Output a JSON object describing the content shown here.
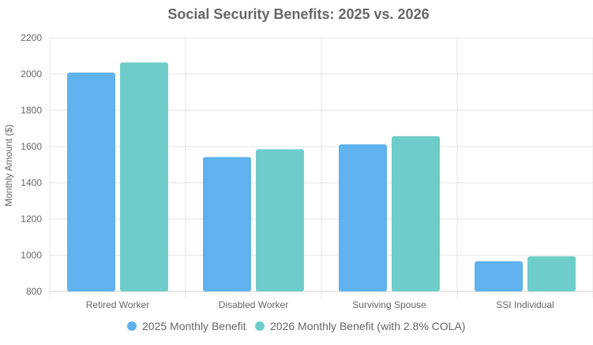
{
  "chart_data": {
    "type": "bar",
    "title": "Social Security Benefits: 2025 vs. 2026",
    "xlabel": "",
    "ylabel": "Monthly Amount ($)",
    "ylim": [
      800,
      2200
    ],
    "yticks": [
      800,
      1000,
      1200,
      1400,
      1600,
      1800,
      2000,
      2200
    ],
    "categories": [
      "Retired Worker",
      "Disabled Worker",
      "Surviving Spouse",
      "SSI Individual"
    ],
    "series": [
      {
        "name": "2025 Monthly Benefit",
        "color": "#5fb2ee",
        "values": [
          2008,
          1542,
          1612,
          967
        ]
      },
      {
        "name": "2026 Monthly Benefit (with 2.8% COLA)",
        "color": "#6ecdcb",
        "values": [
          2064,
          1585,
          1657,
          994
        ]
      }
    ],
    "grid": true,
    "legend": "bottom"
  }
}
